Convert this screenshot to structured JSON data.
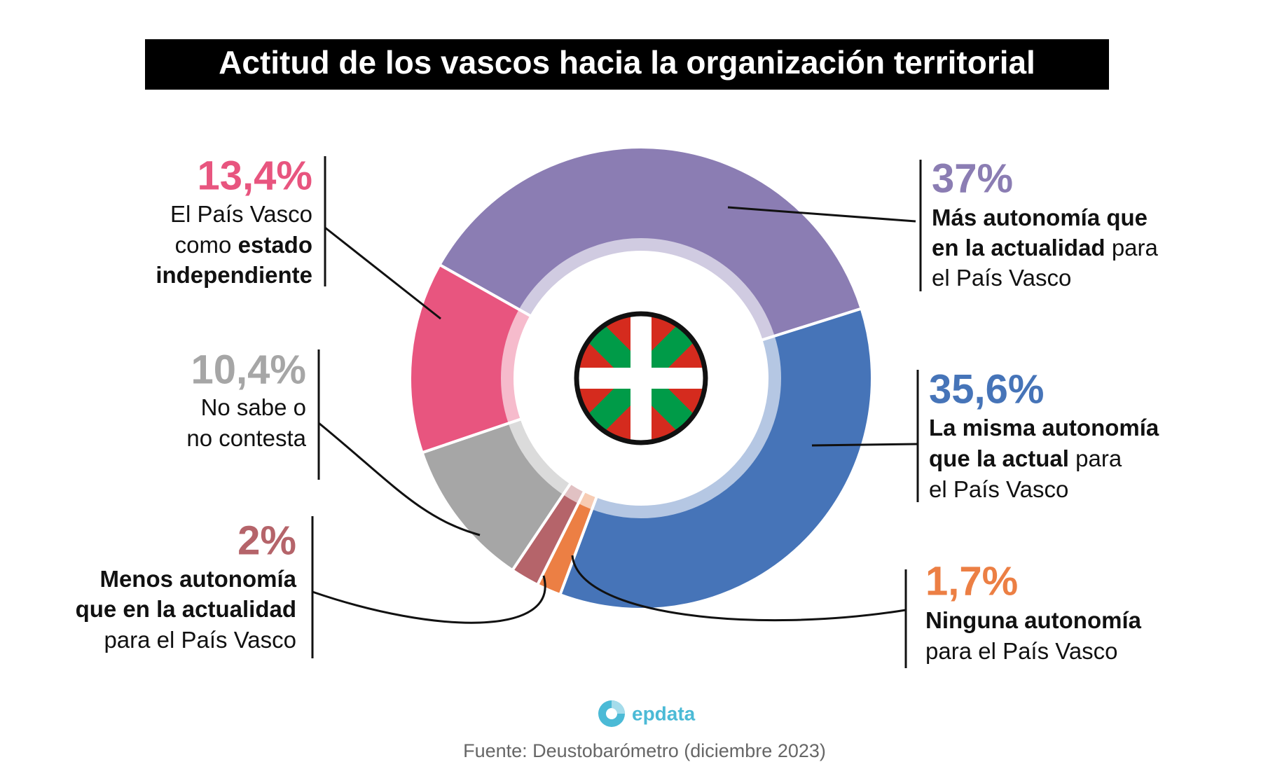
{
  "chart_data": {
    "type": "donut",
    "title": "Actitud de los  vascos hacia la organización territorial",
    "values": [
      37,
      35.6,
      1.7,
      2,
      10.4,
      13.4
    ],
    "value_labels": [
      "37%",
      "35,6%",
      "1,7%",
      "2%",
      "10,4%",
      "13,4%"
    ],
    "colors": [
      "#8b7db3",
      "#4674b8",
      "#ec7f44",
      "#b5646a",
      "#a6a6a6",
      "#e8557f"
    ],
    "categories": [
      [
        [
          {
            "text": "Más autonomía que",
            "bold": true
          }
        ],
        [
          {
            "text": "en la actualidad",
            "bold": true
          },
          {
            "text": "para",
            "bold": false
          }
        ],
        [
          {
            "text": "el País Vasco",
            "bold": false
          }
        ]
      ],
      [
        [
          {
            "text": "La misma autonomía",
            "bold": true
          }
        ],
        [
          {
            "text": "que la actual",
            "bold": true
          },
          {
            "text": "para",
            "bold": false
          }
        ],
        [
          {
            "text": "el País Vasco",
            "bold": false
          }
        ]
      ],
      [
        [
          {
            "text": "Ninguna autonomía",
            "bold": true
          }
        ],
        [
          {
            "text": "para el País Vasco",
            "bold": false
          }
        ]
      ],
      [
        [
          {
            "text": "Menos autonomía",
            "bold": true
          }
        ],
        [
          {
            "text": "que en la actualidad",
            "bold": true
          }
        ],
        [
          {
            "text": "para el País Vasco",
            "bold": false
          }
        ]
      ],
      [
        [
          {
            "text": "No sabe o",
            "bold": false
          }
        ],
        [
          {
            "text": "no contesta",
            "bold": false
          }
        ]
      ],
      [
        [
          {
            "text": "El País Vasco",
            "bold": false
          }
        ],
        [
          {
            "text": "como",
            "bold": false
          },
          {
            "text": "estado",
            "bold": true
          }
        ],
        [
          {
            "text": "independiente",
            "bold": true
          }
        ]
      ]
    ],
    "brand": "epdata",
    "source": "Fuente: Deustobarómetro (diciembre 2023)"
  }
}
